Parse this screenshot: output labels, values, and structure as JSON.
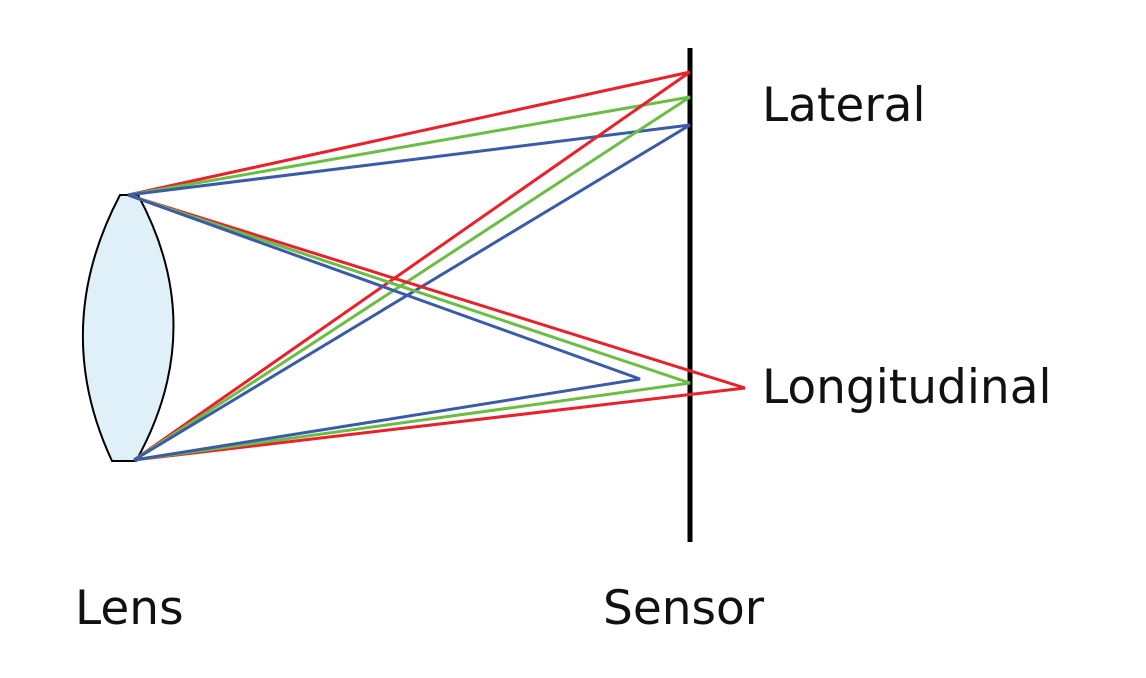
{
  "labels": {
    "lateral": "Lateral",
    "longitudinal": "Longitudinal",
    "lens": "Lens",
    "sensor": "Sensor"
  },
  "colors": {
    "red": "#e8212b",
    "green": "#6cbd45",
    "blue": "#3a5ca8",
    "lens_fill": "#dff0f8",
    "outline": "#000000"
  }
}
